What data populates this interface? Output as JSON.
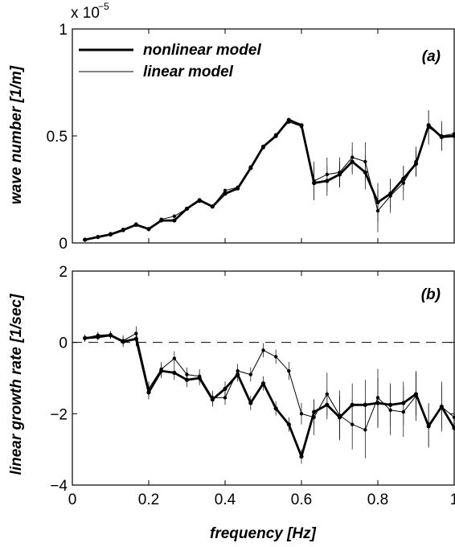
{
  "chart_data": [
    {
      "type": "line",
      "panel_label": "(a)",
      "ylabel": "wave number [1/m]",
      "xlabel": "",
      "scale_note": {
        "base": "x 10",
        "exponent": "−5"
      },
      "xlim": [
        0,
        1
      ],
      "ylim": [
        0,
        1
      ],
      "xticks": [
        0,
        0.2,
        0.4,
        0.6,
        0.8,
        1
      ],
      "yticks": [
        0,
        0.5,
        1
      ],
      "ytick_labels": [
        "0",
        "0.5",
        "1"
      ],
      "legend_position": "top-left",
      "series": [
        {
          "name": "nonlinear model",
          "style": "thick",
          "x": [
            0.033,
            0.067,
            0.1,
            0.133,
            0.167,
            0.2,
            0.233,
            0.267,
            0.3,
            0.333,
            0.367,
            0.4,
            0.433,
            0.467,
            0.5,
            0.533,
            0.567,
            0.6,
            0.633,
            0.667,
            0.7,
            0.733,
            0.767,
            0.8,
            0.833,
            0.867,
            0.9,
            0.933,
            0.967,
            1.0
          ],
          "y": [
            0.015,
            0.028,
            0.04,
            0.06,
            0.085,
            0.065,
            0.105,
            0.105,
            0.16,
            0.2,
            0.17,
            0.23,
            0.255,
            0.35,
            0.45,
            0.5,
            0.575,
            0.55,
            0.28,
            0.29,
            0.32,
            0.38,
            0.33,
            0.19,
            0.23,
            0.3,
            0.37,
            0.55,
            0.495,
            0.5
          ],
          "yerr": [
            0,
            0,
            0,
            0,
            0,
            0,
            0,
            0,
            0,
            0,
            0,
            0,
            0,
            0,
            0,
            0,
            0,
            0,
            0.08,
            0.07,
            0.06,
            0.06,
            0.08,
            0.09,
            0.07,
            0.06,
            0.06,
            0.07,
            0.06,
            0.06
          ]
        },
        {
          "name": "linear model",
          "style": "thin",
          "x": [
            0.033,
            0.067,
            0.1,
            0.133,
            0.167,
            0.2,
            0.233,
            0.267,
            0.3,
            0.333,
            0.367,
            0.4,
            0.433,
            0.467,
            0.5,
            0.533,
            0.567,
            0.6,
            0.633,
            0.667,
            0.7,
            0.733,
            0.767,
            0.8,
            0.833,
            0.867,
            0.9,
            0.933,
            0.967,
            1.0
          ],
          "y": [
            0.015,
            0.027,
            0.043,
            0.063,
            0.088,
            0.063,
            0.11,
            0.125,
            0.16,
            0.195,
            0.17,
            0.245,
            0.26,
            0.355,
            0.445,
            0.505,
            0.565,
            0.545,
            0.29,
            0.32,
            0.33,
            0.4,
            0.38,
            0.15,
            0.22,
            0.28,
            0.38,
            0.54,
            0.5,
            0.51
          ],
          "yerr": [
            0,
            0,
            0,
            0,
            0,
            0,
            0,
            0,
            0,
            0,
            0,
            0,
            0,
            0,
            0,
            0,
            0,
            0,
            0.09,
            0.08,
            0.07,
            0.07,
            0.09,
            0.1,
            0.08,
            0.08,
            0.07,
            0.08,
            0.07,
            0.07
          ]
        }
      ]
    },
    {
      "type": "line",
      "panel_label": "(b)",
      "ylabel": "linear growth rate [1/sec]",
      "xlabel": "frequency [Hz]",
      "xlim": [
        0,
        1
      ],
      "ylim": [
        -4,
        2
      ],
      "xticks": [
        0,
        0.2,
        0.4,
        0.6,
        0.8,
        1
      ],
      "xtick_labels": [
        "0",
        "0.2",
        "0.4",
        "0.6",
        "0.8",
        "1"
      ],
      "yticks": [
        -4,
        -2,
        0,
        2
      ],
      "ytick_labels": [
        "−4",
        "−2",
        "0",
        "2"
      ],
      "reference_line": 0,
      "series": [
        {
          "name": "nonlinear model",
          "style": "thick",
          "x": [
            0.033,
            0.067,
            0.1,
            0.133,
            0.167,
            0.2,
            0.233,
            0.267,
            0.3,
            0.333,
            0.367,
            0.4,
            0.433,
            0.467,
            0.5,
            0.533,
            0.567,
            0.6,
            0.633,
            0.667,
            0.7,
            0.733,
            0.767,
            0.8,
            0.833,
            0.867,
            0.9,
            0.933,
            0.967,
            1.0
          ],
          "y": [
            0.12,
            0.15,
            0.2,
            0.02,
            0.1,
            -1.4,
            -0.8,
            -0.85,
            -1.05,
            -1.0,
            -1.6,
            -1.3,
            -0.9,
            -1.7,
            -1.15,
            -1.85,
            -2.3,
            -3.2,
            -1.95,
            -1.75,
            -2.1,
            -1.75,
            -1.75,
            -1.7,
            -1.75,
            -1.7,
            -1.45,
            -2.35,
            -1.8,
            -2.4
          ],
          "yerr": [
            0.1,
            0.1,
            0.1,
            0.15,
            0.2,
            0.2,
            0.2,
            0.2,
            0.2,
            0.2,
            0.2,
            0.2,
            0.2,
            0.2,
            0.2,
            0.2,
            0.2,
            0.2,
            0.35,
            0.4,
            0.6,
            0.6,
            0.7,
            0.7,
            0.6,
            0.6,
            0.6,
            0.6,
            0.6,
            0.6
          ]
        },
        {
          "name": "linear model",
          "style": "thin",
          "x": [
            0.033,
            0.067,
            0.1,
            0.133,
            0.167,
            0.2,
            0.233,
            0.267,
            0.3,
            0.333,
            0.367,
            0.4,
            0.433,
            0.467,
            0.5,
            0.533,
            0.567,
            0.6,
            0.633,
            0.667,
            0.7,
            0.733,
            0.767,
            0.8,
            0.833,
            0.867,
            0.9,
            0.933,
            0.967,
            1.0
          ],
          "y": [
            0.12,
            0.2,
            0.22,
            0.05,
            0.25,
            -1.3,
            -0.75,
            -0.45,
            -0.9,
            -0.95,
            -1.55,
            -1.55,
            -0.8,
            -0.9,
            -0.22,
            -0.4,
            -0.8,
            -2.0,
            -2.1,
            -1.45,
            -2.05,
            -2.3,
            -2.45,
            -1.55,
            -1.9,
            -1.95,
            -1.5,
            -2.3,
            -1.8,
            -2.1
          ],
          "yerr": [
            0.1,
            0.1,
            0.1,
            0.15,
            0.2,
            0.2,
            0.2,
            0.2,
            0.2,
            0.2,
            0.2,
            0.2,
            0.2,
            0.2,
            0.2,
            0.2,
            0.25,
            0.3,
            0.5,
            0.6,
            0.7,
            0.7,
            0.8,
            0.8,
            0.7,
            0.7,
            0.7,
            0.6,
            0.7,
            0.6
          ]
        }
      ]
    }
  ]
}
